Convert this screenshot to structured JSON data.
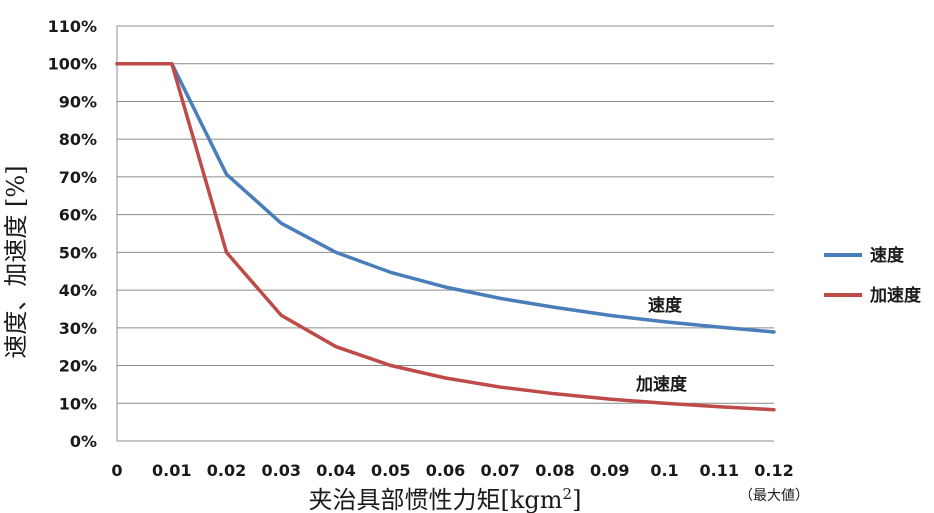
{
  "chart_data": {
    "type": "line",
    "xlabel_main": "夹治具部惯性力矩",
    "xlabel_unit_open": "[kgm",
    "xlabel_unit_sup": "2",
    "xlabel_unit_close": "]",
    "ylabel": "速度、加速度 [%]",
    "x_tick_labels": [
      "0",
      "0.01",
      "0.02",
      "0.03",
      "0.04",
      "0.05",
      "0.06",
      "0.07",
      "0.08",
      "0.09",
      "0.1",
      "0.11",
      "0.12"
    ],
    "x_max_note": "（最大値）",
    "y_tick_labels": [
      "0%",
      "10%",
      "20%",
      "30%",
      "40%",
      "50%",
      "60%",
      "70%",
      "80%",
      "90%",
      "100%",
      "110%"
    ],
    "xlim": [
      0,
      0.12
    ],
    "ylim": [
      0,
      110
    ],
    "grid": "horizontal",
    "legend_position": "right",
    "series": [
      {
        "name": "速度",
        "color": "#4a7ebb",
        "x": [
          0,
          0.01,
          0.02,
          0.03,
          0.04,
          0.05,
          0.06,
          0.07,
          0.08,
          0.09,
          0.1,
          0.11,
          0.12
        ],
        "y": [
          100,
          100,
          70.7,
          57.7,
          50,
          44.7,
          40.8,
          37.8,
          35.4,
          33.3,
          31.6,
          30.2,
          28.9
        ]
      },
      {
        "name": "加速度",
        "color": "#be4b48",
        "x": [
          0,
          0.01,
          0.02,
          0.03,
          0.04,
          0.05,
          0.06,
          0.07,
          0.08,
          0.09,
          0.1,
          0.11,
          0.12
        ],
        "y": [
          100,
          100,
          50,
          33.3,
          25,
          20,
          16.7,
          14.3,
          12.5,
          11.1,
          10,
          9.1,
          8.3
        ]
      }
    ],
    "annotations": [
      "速度",
      "加速度"
    ]
  }
}
